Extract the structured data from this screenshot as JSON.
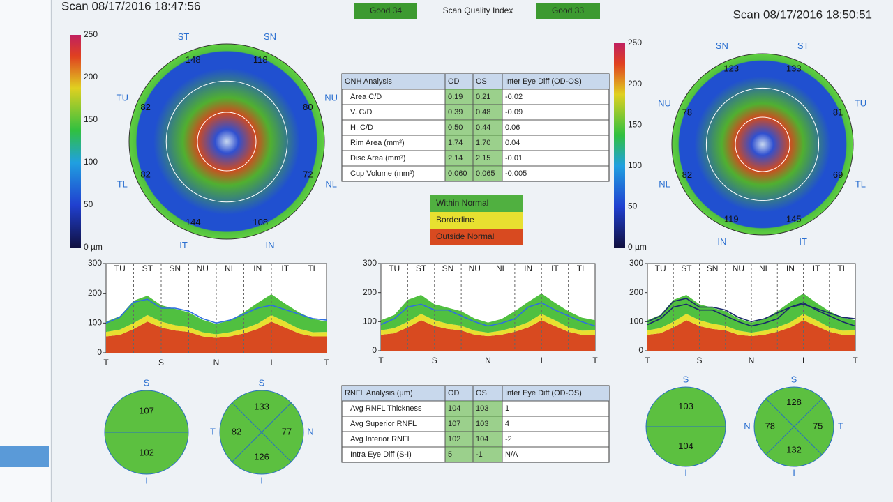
{
  "header": {
    "left_scan": "Scan 08/17/2016 18:47:56",
    "right_scan": "Scan 08/17/2016 18:50:51",
    "quality_label": "Scan Quality Index",
    "quality_od": "Good 34",
    "quality_os": "Good 33"
  },
  "color_scale": {
    "labels": [
      "250",
      "200",
      "150",
      "100",
      "50",
      "0 µm"
    ]
  },
  "maps": [
    {
      "sector_names": [
        "ST",
        "SN",
        "NU",
        "NL",
        "IN",
        "IT",
        "TL",
        "TU"
      ],
      "sector_values": [
        148,
        118,
        80,
        72,
        108,
        144,
        82,
        82
      ]
    },
    {
      "sector_names": [
        "SN",
        "ST",
        "TU",
        "TL",
        "IT",
        "IN",
        "NL",
        "NU"
      ],
      "sector_values": [
        123,
        133,
        81,
        69,
        145,
        119,
        82,
        78
      ]
    }
  ],
  "onh_table": {
    "header": [
      "ONH Analysis",
      "OD",
      "OS",
      "Inter Eye Diff (OD-OS)"
    ],
    "rows": [
      [
        "Area C/D",
        "0.19",
        "0.21",
        "-0.02"
      ],
      [
        "V. C/D",
        "0.39",
        "0.48",
        "-0.09"
      ],
      [
        "H. C/D",
        "0.50",
        "0.44",
        "0.06"
      ],
      [
        "Rim Area (mm²)",
        "1.74",
        "1.70",
        "0.04"
      ],
      [
        "Disc Area (mm²)",
        "2.14",
        "2.15",
        "-0.01"
      ],
      [
        "Cup Volume (mm³)",
        "0.060",
        "0.065",
        "-0.005"
      ]
    ]
  },
  "legend": [
    "Within Normal",
    "Borderline",
    "Outside Normal"
  ],
  "tsnit": {
    "ylim": [
      0,
      300
    ],
    "yticks": [
      0,
      100,
      200,
      300
    ],
    "x_labels": [
      "T",
      "S",
      "N",
      "I",
      "T"
    ],
    "sector_labels": [
      "TU",
      "ST",
      "SN",
      "NU",
      "NL",
      "IN",
      "IT",
      "TL"
    ],
    "bands": [
      {
        "color": "#d84a20",
        "values": [
          55,
          60,
          80,
          105,
          85,
          75,
          70,
          55,
          50,
          55,
          65,
          80,
          105,
          85,
          65,
          55,
          55
        ]
      },
      {
        "color": "#e8e030",
        "values": [
          15,
          18,
          20,
          22,
          20,
          18,
          16,
          14,
          12,
          14,
          16,
          18,
          22,
          20,
          16,
          14,
          15
        ]
      },
      {
        "color": "#50c040",
        "values": [
          35,
          45,
          75,
          65,
          55,
          55,
          50,
          42,
          35,
          40,
          55,
          70,
          70,
          60,
          55,
          45,
          35
        ]
      }
    ],
    "charts": [
      {
        "series": [
          {
            "color": "#2f6fe0",
            "values": [
              100,
              120,
              170,
              180,
              150,
              150,
              140,
              115,
              100,
              110,
              130,
              150,
              160,
              145,
              130,
              115,
              110
            ]
          }
        ]
      },
      {
        "series": [
          {
            "color": "#2f6fe0",
            "values": [
              90,
              110,
              150,
              160,
              140,
              140,
              120,
              100,
              85,
              95,
              110,
              150,
              165,
              140,
              120,
              100,
              85
            ]
          }
        ]
      },
      {
        "series": [
          {
            "color": "#1a2a6a",
            "values": [
              100,
              120,
              170,
              180,
              150,
              150,
              140,
              115,
              100,
              110,
              130,
              150,
              160,
              145,
              130,
              115,
              110
            ]
          },
          {
            "color": "#1a2a6a",
            "values": [
              90,
              110,
              150,
              160,
              140,
              140,
              120,
              100,
              85,
              95,
              110,
              150,
              165,
              140,
              120,
              100,
              85
            ]
          }
        ]
      }
    ]
  },
  "sector_circles": [
    {
      "labels": [
        "S",
        "I"
      ],
      "values": [
        107,
        102
      ]
    },
    {
      "labels": [
        "S",
        "N",
        "I",
        "T"
      ],
      "values": [
        133,
        77,
        126,
        82
      ]
    },
    {
      "labels": [
        "S",
        "I"
      ],
      "values": [
        103,
        104
      ]
    },
    {
      "labels": [
        "S",
        "T",
        "I",
        "N"
      ],
      "values": [
        128,
        75,
        132,
        78
      ]
    }
  ],
  "rnfl_table": {
    "header": [
      "RNFL Analysis (µm)",
      "OD",
      "OS",
      "Inter Eye Diff (OD-OS)"
    ],
    "rows": [
      [
        "Avg RNFL Thickness",
        "104",
        "103",
        "1"
      ],
      [
        "Avg Superior RNFL",
        "107",
        "103",
        "4"
      ],
      [
        "Avg Inferior RNFL",
        "102",
        "104",
        "-2"
      ],
      [
        "Intra Eye Diff (S-I)",
        "5",
        "-1",
        "N/A"
      ]
    ]
  }
}
